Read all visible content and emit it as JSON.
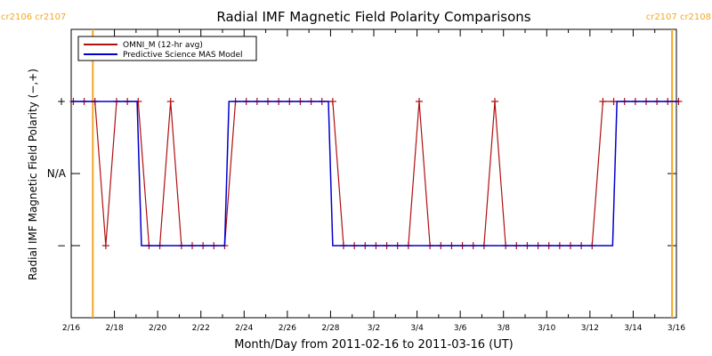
{
  "chart_data": {
    "type": "line",
    "title": "Radial IMF Magnetic Field Polarity Comparisons",
    "xlabel": "Month/Day from 2011-02-16 to 2011-03-16 (UT)",
    "ylabel": "Radial IMF Magnetic Field Polarity (−,+)",
    "x_tick_labels": [
      "2/16",
      "2/18",
      "2/20",
      "2/22",
      "2/24",
      "2/26",
      "2/28",
      "3/2",
      "3/4",
      "3/6",
      "3/8",
      "3/10",
      "3/12",
      "3/14",
      "3/16"
    ],
    "x_tick_day_offsets": [
      0,
      2,
      4,
      6,
      8,
      10,
      12,
      14,
      16,
      18,
      20,
      22,
      24,
      26,
      28
    ],
    "xlim_days": [
      0,
      28
    ],
    "y_tick_labels": [
      "+",
      "N/A",
      "−"
    ],
    "y_tick_values": [
      1,
      0,
      -1
    ],
    "ylim": [
      -2,
      2
    ],
    "legend_location": "top-left",
    "rotations": [
      {
        "day": 1.0,
        "labels": [
          "cr2106",
          "cr2107"
        ],
        "color": "#F5A623",
        "side": "left"
      },
      {
        "day": 27.8,
        "labels": [
          "cr2107",
          "cr2108"
        ],
        "color": "#F5A623",
        "side": "right"
      }
    ],
    "series": [
      {
        "name": "OMNI_M (12-hr avg)",
        "color": "#B01010",
        "marker": "+",
        "x": [
          0.1,
          0.6,
          1.1,
          1.6,
          2.1,
          2.6,
          3.1,
          3.6,
          4.1,
          4.6,
          5.1,
          5.6,
          6.1,
          6.6,
          7.1,
          7.6,
          8.1,
          8.6,
          9.1,
          9.6,
          10.1,
          10.6,
          11.1,
          11.6,
          12.1,
          12.6,
          13.1,
          13.6,
          14.1,
          14.6,
          15.1,
          15.6,
          16.1,
          16.6,
          17.1,
          17.6,
          18.1,
          18.6,
          19.1,
          19.6,
          20.1,
          20.6,
          21.1,
          21.6,
          22.1,
          22.6,
          23.1,
          23.6,
          24.1,
          24.6,
          25.1,
          25.6,
          26.1,
          26.6,
          27.1,
          27.6,
          28.1
        ],
        "y": [
          1,
          1,
          1,
          -1,
          1,
          1,
          1,
          -1,
          -1,
          1,
          -1,
          -1,
          -1,
          -1,
          -1,
          1,
          1,
          1,
          1,
          1,
          1,
          1,
          1,
          1,
          1,
          -1,
          -1,
          -1,
          -1,
          -1,
          -1,
          -1,
          1,
          -1,
          -1,
          -1,
          -1,
          -1,
          -1,
          1,
          -1,
          -1,
          -1,
          -1,
          -1,
          -1,
          -1,
          -1,
          -1,
          1,
          1,
          1,
          1,
          1,
          1,
          1,
          1
        ]
      },
      {
        "name": "Predictive Science MAS Model",
        "color": "#0000CC",
        "step_x": [
          0,
          3.05,
          3.25,
          7.1,
          7.3,
          11.9,
          12.1,
          25.05,
          25.25,
          28.1
        ],
        "step_y": [
          1,
          1,
          -1,
          -1,
          1,
          1,
          -1,
          -1,
          1,
          1
        ]
      }
    ]
  }
}
